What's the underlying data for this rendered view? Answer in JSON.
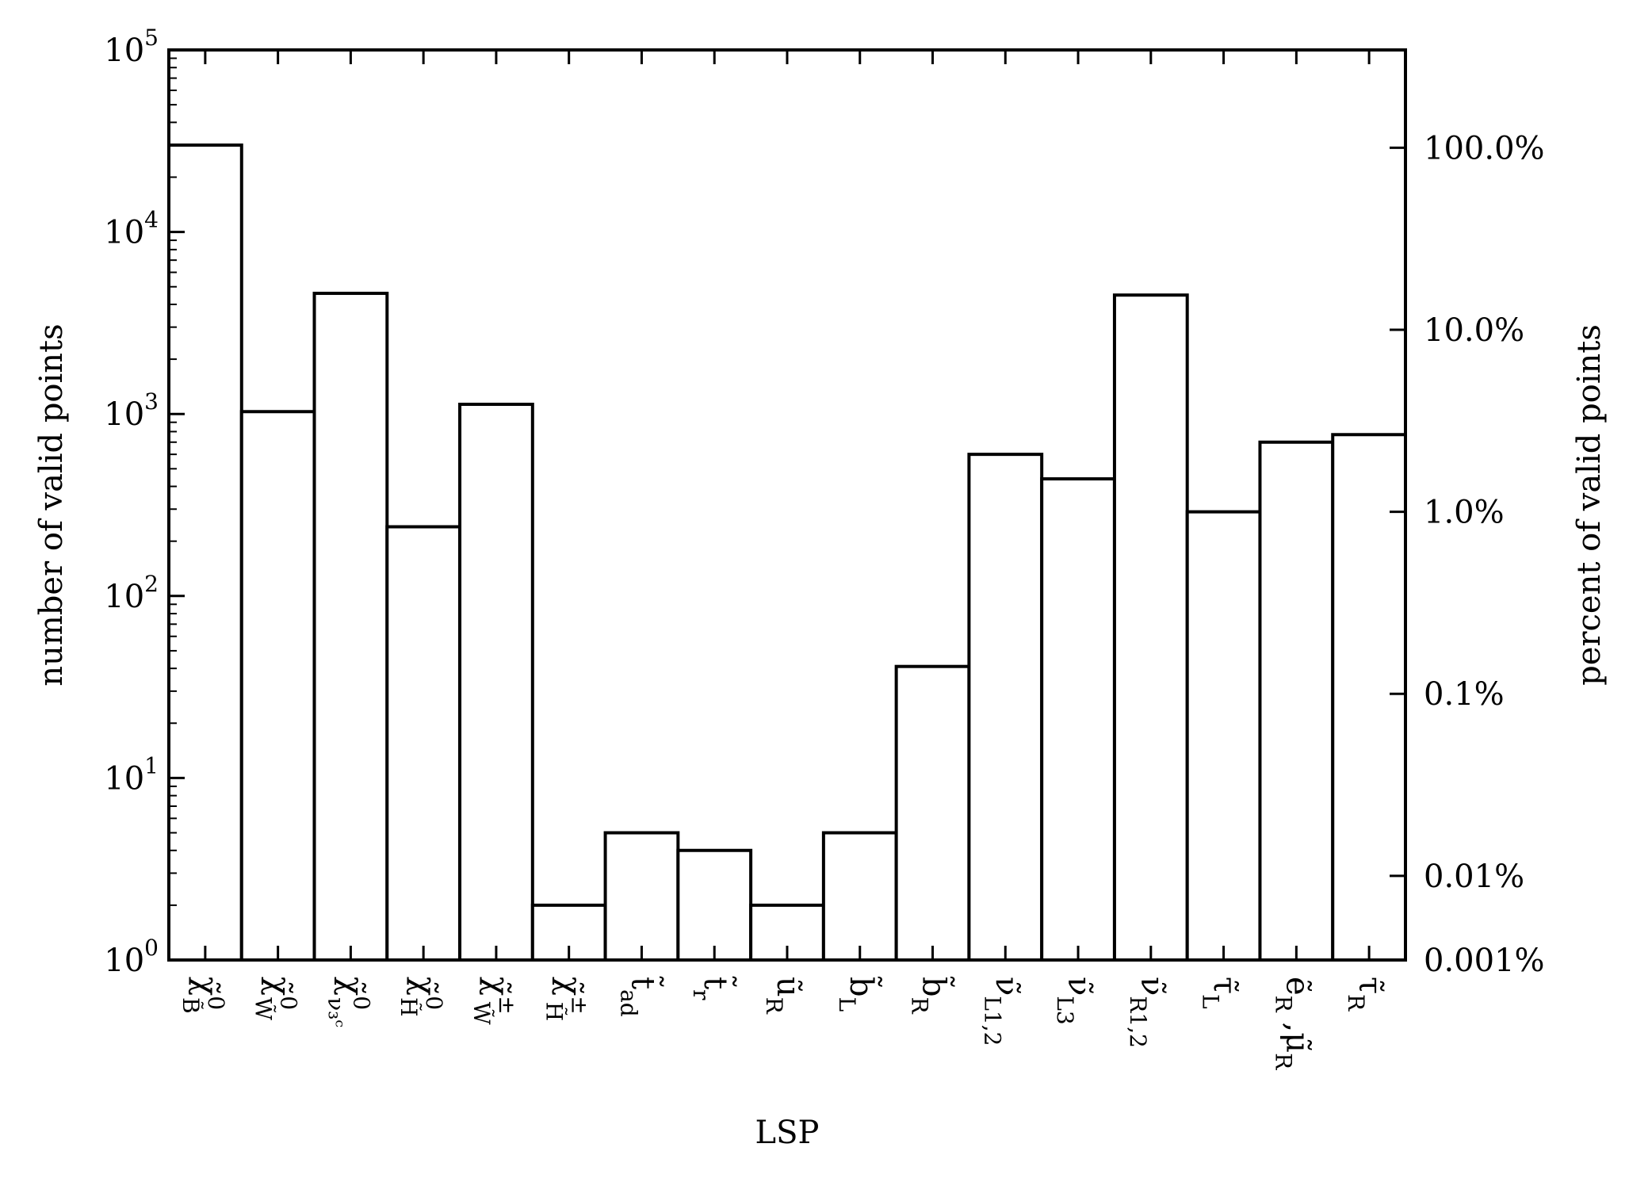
{
  "chart_data": {
    "type": "bar",
    "xlabel": "LSP",
    "ylabel": "number of valid points",
    "ylabel_right": "percent of valid points",
    "yscale": "log",
    "ylim": [
      1,
      100000
    ],
    "y_ticks": [
      {
        "base": "10",
        "exp": "0",
        "value": 1
      },
      {
        "base": "10",
        "exp": "1",
        "value": 10
      },
      {
        "base": "10",
        "exp": "2",
        "value": 100
      },
      {
        "base": "10",
        "exp": "3",
        "value": 1000
      },
      {
        "base": "10",
        "exp": "4",
        "value": 10000
      },
      {
        "base": "10",
        "exp": "5",
        "value": 100000
      }
    ],
    "right_ticks": [
      {
        "label": "100.0%",
        "value": 29000
      },
      {
        "label": "10.0%",
        "value": 2900
      },
      {
        "label": "1.0%",
        "value": 290
      },
      {
        "label": "0.1%",
        "value": 29
      },
      {
        "label": "0.01%",
        "value": 2.9
      },
      {
        "label": "0.001%",
        "value": 1
      }
    ],
    "categories": [
      {
        "sym": "χ̃",
        "sub": "B̃",
        "sup": "0"
      },
      {
        "sym": "χ̃",
        "sub": "W̃",
        "sup": "0"
      },
      {
        "sym": "χ̃",
        "sub": "ν₃ᶜ",
        "sup": "0"
      },
      {
        "sym": "χ̃",
        "sub": "H̃",
        "sup": "0"
      },
      {
        "sym": "χ̃",
        "sub": "W̃",
        "sup": "±"
      },
      {
        "sym": "χ̃",
        "sub": "H̃",
        "sup": "±"
      },
      {
        "sym": "t̃",
        "sub": "ad",
        "sup": ""
      },
      {
        "sym": "t̃",
        "sub": "r",
        "sup": ""
      },
      {
        "sym": "ũ",
        "sub": "R",
        "sup": ""
      },
      {
        "sym": "b̃",
        "sub": "L",
        "sup": ""
      },
      {
        "sym": "b̃",
        "sub": "R",
        "sup": ""
      },
      {
        "sym": "ν̃",
        "sub": "L1,2",
        "sup": ""
      },
      {
        "sym": "ν̃",
        "sub": "L3",
        "sup": ""
      },
      {
        "sym": "ν̃",
        "sub": "R1,2",
        "sup": ""
      },
      {
        "sym": "τ̃",
        "sub": "L",
        "sup": ""
      },
      {
        "sym": "ẽ",
        "sub": "R",
        "sup": "",
        "sym2": " ,μ̃",
        "sub2": "R"
      },
      {
        "sym": "τ̃",
        "sub": "R",
        "sup": ""
      }
    ],
    "values": [
      30000,
      1030,
      4600,
      240,
      1130,
      2,
      5,
      4,
      2,
      5,
      41,
      600,
      440,
      4500,
      290,
      700,
      770
    ],
    "grid": false,
    "legend": "none"
  }
}
